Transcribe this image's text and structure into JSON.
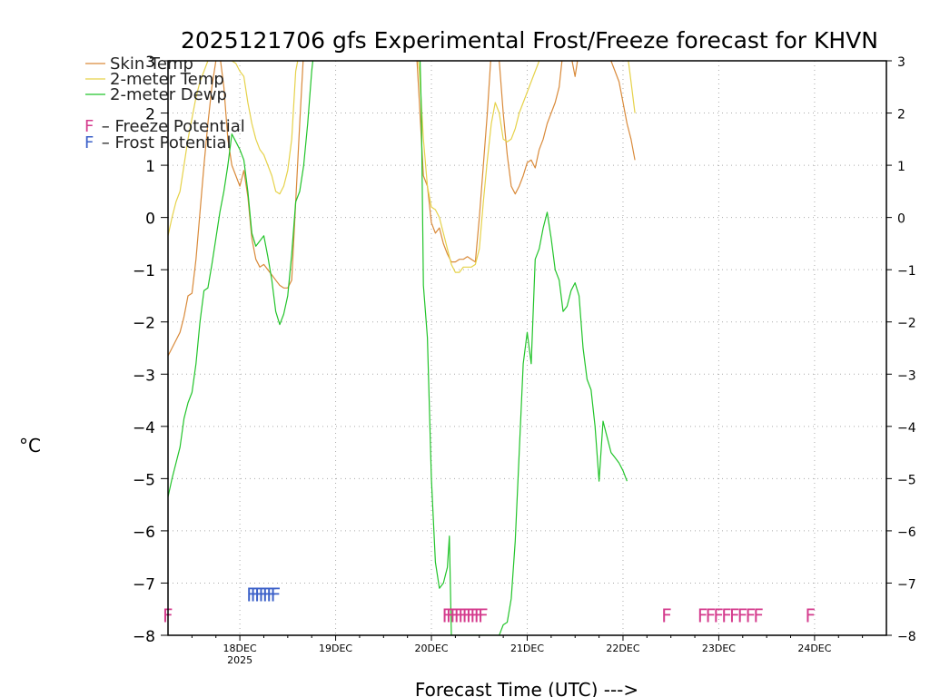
{
  "chart_data": {
    "type": "line",
    "title": "2025121706 gfs Experimental Frost/Freeze forecast for KHVN",
    "xlabel": "Forecast Time (UTC) --->",
    "ylabel": "°C",
    "ylim": [
      -8,
      3
    ],
    "xlim": [
      0,
      180
    ],
    "x_unit": "hours from 2025-12-17 06Z",
    "yticks": [
      "3",
      "2",
      "1",
      "0",
      "−1",
      "−2",
      "−3",
      "−4",
      "−5",
      "−6",
      "−7",
      "−8"
    ],
    "right_yticks": [
      "3",
      "2",
      "1",
      "0",
      "−1",
      "−2",
      "−3",
      "−4",
      "−5",
      "−6",
      "−7",
      "−8"
    ],
    "xticks": [
      {
        "hour": 18,
        "label": "18DEC",
        "sublabel": "2025"
      },
      {
        "hour": 42,
        "label": "19DEC",
        "sublabel": ""
      },
      {
        "hour": 66,
        "label": "20DEC",
        "sublabel": ""
      },
      {
        "hour": 90,
        "label": "21DEC",
        "sublabel": ""
      },
      {
        "hour": 114,
        "label": "22DEC",
        "sublabel": ""
      },
      {
        "hour": 138,
        "label": "23DEC",
        "sublabel": ""
      },
      {
        "hour": 162,
        "label": "24DEC",
        "sublabel": ""
      }
    ],
    "grid": true,
    "series": [
      {
        "name": "Skin Temp",
        "legend_label": "Skin Temp",
        "color": "#d98a3a",
        "points": [
          [
            0,
            -2.65
          ],
          [
            1,
            -2.5
          ],
          [
            2,
            -2.35
          ],
          [
            3,
            -2.2
          ],
          [
            4,
            -1.9
          ],
          [
            5,
            -1.5
          ],
          [
            6,
            -1.45
          ],
          [
            7,
            -0.8
          ],
          [
            8,
            0.1
          ],
          [
            9,
            1.0
          ],
          [
            10,
            1.8
          ],
          [
            11,
            2.5
          ],
          [
            12,
            3.0
          ],
          [
            13,
            3.1
          ],
          [
            14,
            2.5
          ],
          [
            15,
            1.5
          ],
          [
            16,
            1.0
          ],
          [
            17,
            0.8
          ],
          [
            18,
            0.6
          ],
          [
            19,
            0.9
          ],
          [
            20,
            0.4
          ],
          [
            21,
            -0.4
          ],
          [
            22,
            -0.8
          ],
          [
            23,
            -0.95
          ],
          [
            24,
            -0.9
          ],
          [
            25,
            -1.0
          ],
          [
            26,
            -1.1
          ],
          [
            27,
            -1.2
          ],
          [
            28,
            -1.3
          ],
          [
            29,
            -1.35
          ],
          [
            30,
            -1.35
          ],
          [
            31,
            -1.2
          ],
          [
            32,
            0.3
          ],
          [
            33,
            1.8
          ],
          [
            34,
            3.2
          ],
          [
            35,
            3.5
          ],
          [
            36,
            3.3
          ],
          [
            37,
            3.2
          ],
          [
            38,
            3.4
          ],
          [
            40,
            3.3
          ],
          [
            41,
            3.1
          ],
          [
            42,
            3.3
          ],
          [
            62,
            3.5
          ],
          [
            63,
            2.2
          ],
          [
            64,
            0.8
          ],
          [
            65,
            0.6
          ],
          [
            66,
            -0.1
          ],
          [
            67,
            -0.3
          ],
          [
            68,
            -0.2
          ],
          [
            69,
            -0.5
          ],
          [
            70,
            -0.7
          ],
          [
            71,
            -0.85
          ],
          [
            72,
            -0.85
          ],
          [
            73,
            -0.8
          ],
          [
            74,
            -0.8
          ],
          [
            75,
            -0.75
          ],
          [
            76,
            -0.8
          ],
          [
            77,
            -0.85
          ],
          [
            78,
            0.0
          ],
          [
            79,
            1.0
          ],
          [
            80,
            2.0
          ],
          [
            81,
            3.2
          ],
          [
            82,
            3.4
          ],
          [
            83,
            3.0
          ],
          [
            84,
            2.0
          ],
          [
            85,
            1.2
          ],
          [
            86,
            0.6
          ],
          [
            87,
            0.45
          ],
          [
            88,
            0.6
          ],
          [
            89,
            0.8
          ],
          [
            90,
            1.05
          ],
          [
            91,
            1.1
          ],
          [
            92,
            0.95
          ],
          [
            93,
            1.3
          ],
          [
            94,
            1.5
          ],
          [
            95,
            1.8
          ],
          [
            96,
            2.0
          ],
          [
            97,
            2.2
          ],
          [
            98,
            2.5
          ],
          [
            99,
            3.2
          ],
          [
            100,
            3.4
          ],
          [
            101,
            3.1
          ],
          [
            102,
            2.7
          ],
          [
            103,
            3.2
          ],
          [
            104,
            3.5
          ],
          [
            110,
            3.5
          ],
          [
            111,
            3.0
          ],
          [
            112,
            2.8
          ],
          [
            113,
            2.6
          ],
          [
            114,
            2.2
          ],
          [
            115,
            1.8
          ],
          [
            116,
            1.5
          ],
          [
            117,
            1.1
          ]
        ]
      },
      {
        "name": "2-meter Temp",
        "legend_label": "2-meter Temp",
        "color": "#e6d24a",
        "points": [
          [
            0,
            -0.35
          ],
          [
            1,
            0.0
          ],
          [
            2,
            0.3
          ],
          [
            3,
            0.5
          ],
          [
            4,
            1.0
          ],
          [
            5,
            1.5
          ],
          [
            6,
            1.9
          ],
          [
            7,
            2.3
          ],
          [
            8,
            2.6
          ],
          [
            9,
            2.8
          ],
          [
            10,
            3.0
          ],
          [
            11,
            3.1
          ],
          [
            12,
            3.2
          ],
          [
            13,
            3.3
          ],
          [
            14,
            3.2
          ],
          [
            15,
            3.1
          ],
          [
            16,
            3.0
          ],
          [
            17,
            2.95
          ],
          [
            18,
            2.8
          ],
          [
            19,
            2.7
          ],
          [
            20,
            2.2
          ],
          [
            21,
            1.8
          ],
          [
            22,
            1.5
          ],
          [
            23,
            1.3
          ],
          [
            24,
            1.2
          ],
          [
            25,
            1.0
          ],
          [
            26,
            0.8
          ],
          [
            27,
            0.5
          ],
          [
            28,
            0.45
          ],
          [
            29,
            0.6
          ],
          [
            30,
            0.9
          ],
          [
            31,
            1.5
          ],
          [
            32,
            2.8
          ],
          [
            33,
            3.2
          ],
          [
            34,
            3.5
          ],
          [
            62,
            3.5
          ],
          [
            63,
            2.8
          ],
          [
            64,
            1.5
          ],
          [
            65,
            0.6
          ],
          [
            66,
            0.2
          ],
          [
            67,
            0.15
          ],
          [
            68,
            0.0
          ],
          [
            69,
            -0.3
          ],
          [
            70,
            -0.6
          ],
          [
            71,
            -0.9
          ],
          [
            72,
            -1.05
          ],
          [
            73,
            -1.05
          ],
          [
            74,
            -0.95
          ],
          [
            75,
            -0.95
          ],
          [
            76,
            -0.95
          ],
          [
            77,
            -0.9
          ],
          [
            78,
            -0.6
          ],
          [
            79,
            0.3
          ],
          [
            80,
            1.1
          ],
          [
            81,
            1.8
          ],
          [
            82,
            2.2
          ],
          [
            83,
            2.0
          ],
          [
            84,
            1.5
          ],
          [
            85,
            1.45
          ],
          [
            86,
            1.5
          ],
          [
            87,
            1.7
          ],
          [
            88,
            2.0
          ],
          [
            89,
            2.2
          ],
          [
            90,
            2.4
          ],
          [
            91,
            2.6
          ],
          [
            92,
            2.8
          ],
          [
            93,
            3.0
          ],
          [
            94,
            3.2
          ],
          [
            95,
            3.5
          ],
          [
            104,
            3.5
          ],
          [
            105,
            3.2
          ],
          [
            106,
            3.0
          ],
          [
            107,
            3.3
          ],
          [
            108,
            3.5
          ],
          [
            110,
            3.5
          ],
          [
            111,
            3.2
          ],
          [
            112,
            3.1
          ],
          [
            113,
            3.3
          ],
          [
            114,
            3.5
          ],
          [
            115,
            3.2
          ],
          [
            116,
            2.6
          ],
          [
            117,
            2.0
          ]
        ]
      },
      {
        "name": "2-meter Dewp",
        "legend_label": "2-meter Dewp",
        "color": "#22c42a",
        "points": [
          [
            0,
            -5.35
          ],
          [
            1,
            -5.0
          ],
          [
            2,
            -4.7
          ],
          [
            3,
            -4.4
          ],
          [
            4,
            -3.85
          ],
          [
            5,
            -3.55
          ],
          [
            6,
            -3.35
          ],
          [
            7,
            -2.8
          ],
          [
            8,
            -2.0
          ],
          [
            9,
            -1.4
          ],
          [
            10,
            -1.35
          ],
          [
            11,
            -0.9
          ],
          [
            12,
            -0.4
          ],
          [
            13,
            0.1
          ],
          [
            14,
            0.5
          ],
          [
            15,
            1.0
          ],
          [
            16,
            1.6
          ],
          [
            17,
            1.45
          ],
          [
            18,
            1.3
          ],
          [
            19,
            1.1
          ],
          [
            20,
            0.5
          ],
          [
            21,
            -0.3
          ],
          [
            22,
            -0.55
          ],
          [
            23,
            -0.45
          ],
          [
            24,
            -0.35
          ],
          [
            25,
            -0.75
          ],
          [
            26,
            -1.2
          ],
          [
            27,
            -1.8
          ],
          [
            28,
            -2.05
          ],
          [
            29,
            -1.85
          ],
          [
            30,
            -1.5
          ],
          [
            31,
            -0.7
          ],
          [
            32,
            0.3
          ],
          [
            33,
            0.5
          ],
          [
            34,
            1.0
          ],
          [
            35,
            1.8
          ],
          [
            36,
            2.8
          ],
          [
            37,
            3.5
          ],
          [
            63,
            3.5
          ],
          [
            63.5,
            2.0
          ],
          [
            64,
            -1.3
          ],
          [
            65,
            -2.3
          ],
          [
            66,
            -5.0
          ],
          [
            67,
            -6.6
          ],
          [
            68,
            -7.1
          ],
          [
            69,
            -7.0
          ],
          [
            70,
            -6.7
          ],
          [
            70.5,
            -6.1
          ],
          [
            71,
            -8.0
          ],
          [
            83,
            -8.0
          ],
          [
            83.5,
            -7.9
          ],
          [
            84,
            -7.8
          ],
          [
            85,
            -7.75
          ],
          [
            86,
            -7.3
          ],
          [
            87,
            -6.2
          ],
          [
            88,
            -4.5
          ],
          [
            89,
            -2.8
          ],
          [
            90,
            -2.2
          ],
          [
            91,
            -2.8
          ],
          [
            92,
            -0.8
          ],
          [
            93,
            -0.6
          ],
          [
            94,
            -0.2
          ],
          [
            95,
            0.1
          ],
          [
            96,
            -0.4
          ],
          [
            97,
            -1.0
          ],
          [
            98,
            -1.2
          ],
          [
            99,
            -1.8
          ],
          [
            100,
            -1.7
          ],
          [
            101,
            -1.4
          ],
          [
            102,
            -1.25
          ],
          [
            103,
            -1.5
          ],
          [
            104,
            -2.5
          ],
          [
            105,
            -3.1
          ],
          [
            106,
            -3.3
          ],
          [
            107,
            -4.0
          ],
          [
            108,
            -5.05
          ],
          [
            109,
            -3.9
          ],
          [
            110,
            -4.2
          ],
          [
            111,
            -4.5
          ],
          [
            112,
            -4.6
          ],
          [
            113,
            -4.7
          ],
          [
            114,
            -4.85
          ],
          [
            115,
            -5.05
          ]
        ]
      }
    ],
    "flags": [
      {
        "type": "freeze",
        "letter": "F",
        "color": "#d43a8c",
        "hours": [
          0,
          70,
          71,
          72,
          73,
          74,
          75,
          76,
          77,
          78,
          79,
          125,
          134,
          136,
          138,
          140,
          142,
          144,
          146,
          148,
          161
        ]
      },
      {
        "type": "frost",
        "letter": "F",
        "color": "#3a5fc8",
        "hours": [
          21,
          22,
          23,
          24,
          25,
          26,
          27
        ]
      }
    ],
    "legend": {
      "position": "top-left",
      "entries": [
        "Skin Temp",
        "2-meter Temp",
        "2-meter Dewp"
      ],
      "flag_entries": [
        {
          "letter": "F",
          "text": " – Freeze Potential",
          "color": "#d43a8c"
        },
        {
          "letter": "F",
          "text": " – Frost Potential",
          "color": "#3a5fc8"
        }
      ]
    }
  }
}
